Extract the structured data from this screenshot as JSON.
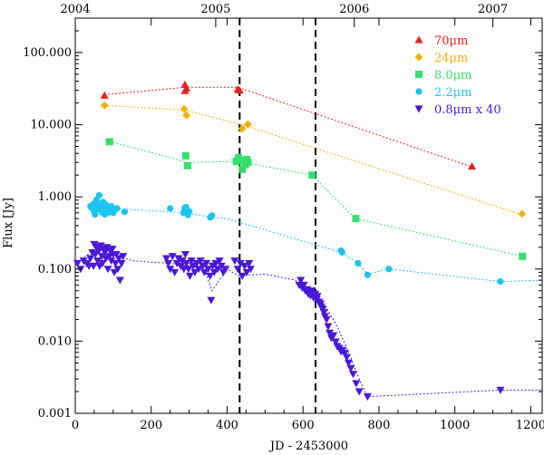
{
  "chart_data": {
    "type": "scatter",
    "title": "",
    "xlabel": "JD - 2453000",
    "ylabel": "Flux [Jy]",
    "xlim": [
      0,
      1230
    ],
    "ylim": [
      0.001,
      300
    ],
    "yscale": "log",
    "x_ticks": [
      "0",
      "200",
      "400",
      "600",
      "800",
      "1000",
      "1200"
    ],
    "y_ticks": [
      "0.001",
      "0.010",
      "0.100",
      "1.000",
      "10.000",
      "100.000"
    ],
    "top_axis_ticks": [
      {
        "label": "2004",
        "x": 0
      },
      {
        "label": "2005",
        "x": 370
      },
      {
        "label": "2006",
        "x": 735
      },
      {
        "label": "2007",
        "x": 1100
      }
    ],
    "vertical_lines": [
      433,
      633
    ],
    "legend_position": "top-right",
    "series": [
      {
        "name": "70μm",
        "color": "#e8201c",
        "marker": "triangle-up",
        "line_x": [
          77,
          289,
          428,
          1045
        ],
        "line_y": [
          26,
          33,
          33,
          2.6
        ],
        "points": [
          [
            77,
            25.5
          ],
          [
            289,
            29.5
          ],
          [
            289,
            36
          ],
          [
            293,
            32
          ],
          [
            428,
            31
          ],
          [
            433,
            30
          ],
          [
            1045,
            2.65
          ]
        ]
      },
      {
        "name": "24μm",
        "color": "#f0b20a",
        "marker": "diamond",
        "line_x": [
          77,
          289,
          445,
          1170
        ],
        "line_y": [
          18.5,
          16,
          9.8,
          0.58
        ],
        "points": [
          [
            77,
            18.5
          ],
          [
            287,
            16.5
          ],
          [
            293,
            13.5
          ],
          [
            440,
            8.8
          ],
          [
            455,
            10.1
          ],
          [
            1177,
            0.58
          ]
        ]
      },
      {
        "name": "8.0μm",
        "color": "#34e06a",
        "marker": "square",
        "line_x": [
          90,
          296,
          430,
          624,
          738,
          1178
        ],
        "line_y": [
          5.9,
          3.0,
          3.1,
          2.0,
          0.5,
          0.15
        ],
        "points": [
          [
            90,
            5.8
          ],
          [
            291,
            3.7
          ],
          [
            296,
            2.7
          ],
          [
            424,
            3.1
          ],
          [
            430,
            3.5
          ],
          [
            436,
            3.2
          ],
          [
            440,
            2.4
          ],
          [
            448,
            2.8
          ],
          [
            452,
            3.3
          ],
          [
            455,
            3.0
          ],
          [
            624,
            2.0
          ],
          [
            739,
            0.5
          ],
          [
            1178,
            0.15
          ]
        ]
      },
      {
        "name": "2.2μm",
        "color": "#1cc4f0",
        "marker": "circle",
        "line_x": [
          40,
          120,
          250,
          290,
          360,
          400,
          700,
          745,
          770,
          825,
          1120,
          1230
        ],
        "line_y": [
          0.72,
          0.68,
          0.62,
          0.6,
          0.52,
          0.5,
          0.17,
          0.12,
          0.085,
          0.1,
          0.067,
          0.07
        ],
        "points": [
          [
            40,
            0.74
          ],
          [
            44,
            0.7
          ],
          [
            48,
            0.8
          ],
          [
            50,
            0.62
          ],
          [
            52,
            0.57
          ],
          [
            56,
            0.91
          ],
          [
            58,
            0.68
          ],
          [
            60,
            0.75
          ],
          [
            63,
            1.05
          ],
          [
            66,
            0.66
          ],
          [
            68,
            0.79
          ],
          [
            70,
            0.61
          ],
          [
            73,
            0.85
          ],
          [
            75,
            0.72
          ],
          [
            78,
            0.57
          ],
          [
            80,
            0.78
          ],
          [
            83,
            0.65
          ],
          [
            86,
            0.73
          ],
          [
            88,
            0.61
          ],
          [
            92,
            0.69
          ],
          [
            95,
            0.74
          ],
          [
            100,
            0.6
          ],
          [
            105,
            0.66
          ],
          [
            110,
            0.69
          ],
          [
            130,
            0.62
          ],
          [
            250,
            0.69
          ],
          [
            285,
            0.6
          ],
          [
            288,
            0.7
          ],
          [
            292,
            0.72
          ],
          [
            297,
            0.56
          ],
          [
            300,
            0.63
          ],
          [
            356,
            0.52
          ],
          [
            360,
            0.55
          ],
          [
            700,
            0.18
          ],
          [
            703,
            0.17
          ],
          [
            745,
            0.12
          ],
          [
            770,
            0.083
          ],
          [
            826,
            0.1
          ],
          [
            1120,
            0.067
          ]
        ]
      },
      {
        "name": "0.8μm x 40",
        "color": "#4a18d8",
        "marker": "triangle-down",
        "line_x": [
          0,
          60,
          150,
          250,
          300,
          340,
          360,
          400,
          430,
          500,
          580,
          620,
          640,
          660,
          690,
          720,
          750,
          770,
          1120,
          1230
        ],
        "line_y": [
          0.12,
          0.2,
          0.13,
          0.12,
          0.11,
          0.1,
          0.05,
          0.1,
          0.08,
          0.085,
          0.07,
          0.05,
          0.04,
          0.03,
          0.016,
          0.007,
          0.0028,
          0.0017,
          0.0021,
          0.0021
        ],
        "points": [
          [
            6,
            0.12
          ],
          [
            14,
            0.1
          ],
          [
            22,
            0.13
          ],
          [
            30,
            0.12
          ],
          [
            36,
            0.11
          ],
          [
            40,
            0.14
          ],
          [
            45,
            0.17
          ],
          [
            48,
            0.11
          ],
          [
            50,
            0.22
          ],
          [
            53,
            0.16
          ],
          [
            56,
            0.2
          ],
          [
            59,
            0.13
          ],
          [
            62,
            0.18
          ],
          [
            64,
            0.11
          ],
          [
            67,
            0.21
          ],
          [
            70,
            0.15
          ],
          [
            72,
            0.12
          ],
          [
            75,
            0.19
          ],
          [
            78,
            0.17
          ],
          [
            81,
            0.14
          ],
          [
            84,
            0.2
          ],
          [
            86,
            0.1
          ],
          [
            90,
            0.15
          ],
          [
            92,
            0.18
          ],
          [
            95,
            0.13
          ],
          [
            98,
            0.19
          ],
          [
            100,
            0.16
          ],
          [
            103,
            0.09
          ],
          [
            106,
            0.12
          ],
          [
            108,
            0.16
          ],
          [
            112,
            0.1
          ],
          [
            115,
            0.14
          ],
          [
            118,
            0.07
          ],
          [
            122,
            0.12
          ],
          [
            126,
            0.15
          ],
          [
            240,
            0.14
          ],
          [
            245,
            0.12
          ],
          [
            250,
            0.1
          ],
          [
            256,
            0.15
          ],
          [
            262,
            0.09
          ],
          [
            268,
            0.12
          ],
          [
            272,
            0.14
          ],
          [
            278,
            0.11
          ],
          [
            282,
            0.13
          ],
          [
            286,
            0.1
          ],
          [
            290,
            0.16
          ],
          [
            293,
            0.12
          ],
          [
            298,
            0.1
          ],
          [
            302,
            0.08
          ],
          [
            306,
            0.13
          ],
          [
            310,
            0.11
          ],
          [
            315,
            0.09
          ],
          [
            320,
            0.12
          ],
          [
            325,
            0.1
          ],
          [
            330,
            0.13
          ],
          [
            336,
            0.11
          ],
          [
            340,
            0.09
          ],
          [
            345,
            0.12
          ],
          [
            350,
            0.1
          ],
          [
            355,
            0.08
          ],
          [
            358,
            0.037
          ],
          [
            362,
            0.11
          ],
          [
            366,
            0.09
          ],
          [
            370,
            0.12
          ],
          [
            375,
            0.1
          ],
          [
            380,
            0.13
          ],
          [
            385,
            0.11
          ],
          [
            390,
            0.09
          ],
          [
            396,
            0.1
          ],
          [
            420,
            0.13
          ],
          [
            428,
            0.1
          ],
          [
            435,
            0.12
          ],
          [
            440,
            0.08
          ],
          [
            446,
            0.11
          ],
          [
            452,
            0.09
          ],
          [
            458,
            0.12
          ],
          [
            462,
            0.1
          ],
          [
            590,
            0.06
          ],
          [
            594,
            0.07
          ],
          [
            598,
            0.055
          ],
          [
            602,
            0.06
          ],
          [
            606,
            0.05
          ],
          [
            610,
            0.052
          ],
          [
            614,
            0.045
          ],
          [
            618,
            0.048
          ],
          [
            620,
            0.043
          ],
          [
            624,
            0.05
          ],
          [
            628,
            0.04
          ],
          [
            632,
            0.045
          ],
          [
            636,
            0.038
          ],
          [
            638,
            0.042
          ],
          [
            642,
            0.035
          ],
          [
            646,
            0.033
          ],
          [
            648,
            0.03
          ],
          [
            652,
            0.028
          ],
          [
            655,
            0.025
          ],
          [
            658,
            0.022
          ],
          [
            662,
            0.02
          ],
          [
            666,
            0.016
          ],
          [
            670,
            0.013
          ],
          [
            675,
            0.011
          ],
          [
            680,
            0.012
          ],
          [
            686,
            0.0098
          ],
          [
            690,
            0.0085
          ],
          [
            695,
            0.008
          ],
          [
            700,
            0.0072
          ],
          [
            704,
            0.0075
          ],
          [
            710,
            0.0068
          ],
          [
            715,
            0.006
          ],
          [
            720,
            0.005
          ],
          [
            726,
            0.0042
          ],
          [
            732,
            0.0035
          ],
          [
            740,
            0.0026
          ],
          [
            748,
            0.002
          ],
          [
            770,
            0.0017
          ],
          [
            1120,
            0.0021
          ]
        ]
      }
    ]
  }
}
